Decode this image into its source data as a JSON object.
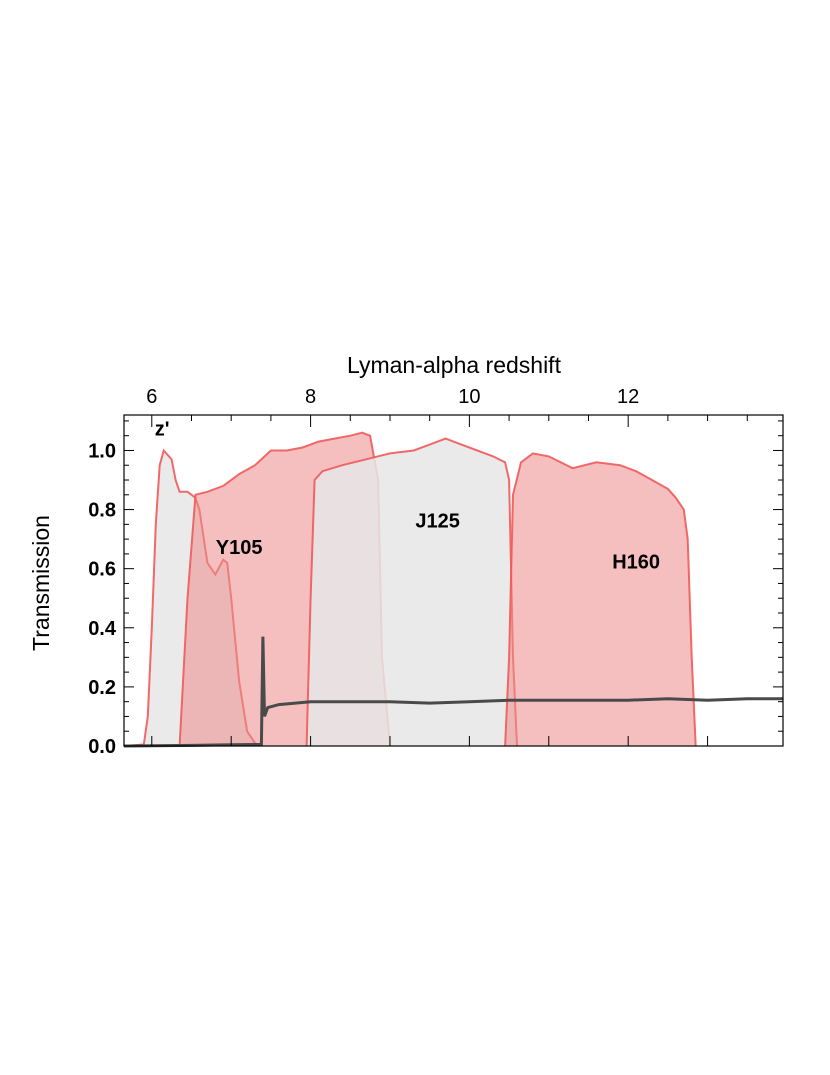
{
  "chart_data": {
    "type": "area",
    "title": "",
    "xlabel_top": "Lyman-alpha redshift",
    "ylabel": "Transmission",
    "xlim": [
      5.65,
      13.95
    ],
    "ylim": [
      0,
      1.12
    ],
    "grid": false,
    "top_ticks": [
      6,
      8,
      10,
      12
    ],
    "y_ticks": [
      0.0,
      0.2,
      0.4,
      0.6,
      0.8,
      1.0
    ],
    "y_tick_labels": [
      "0.0",
      "0.2",
      "0.4",
      "0.6",
      "0.8",
      "1.0"
    ],
    "colors": {
      "gray_fill": "#e6e6e6",
      "red_fill": "#ef8a8a",
      "red_line": "#f05a5a",
      "curve": "#4a4a4a"
    },
    "series": [
      {
        "name": "z'",
        "fill": "gray",
        "x": [
          5.65,
          5.9,
          5.95,
          6.0,
          6.05,
          6.1,
          6.15,
          6.25,
          6.3,
          6.35,
          6.45,
          6.55,
          6.6,
          6.7,
          6.8,
          6.9,
          6.95,
          7.0,
          7.1,
          7.2,
          7.3,
          7.35
        ],
        "y": [
          0.0,
          0.005,
          0.1,
          0.4,
          0.75,
          0.95,
          1.0,
          0.97,
          0.9,
          0.86,
          0.86,
          0.84,
          0.8,
          0.62,
          0.58,
          0.63,
          0.62,
          0.5,
          0.22,
          0.05,
          0.01,
          0.0
        ]
      },
      {
        "name": "Y105",
        "fill": "red",
        "x": [
          6.35,
          6.45,
          6.55,
          6.7,
          6.9,
          7.1,
          7.3,
          7.5,
          7.7,
          7.9,
          8.1,
          8.3,
          8.5,
          8.65,
          8.75,
          8.85,
          8.9,
          9.0
        ],
        "y": [
          0.0,
          0.5,
          0.85,
          0.86,
          0.88,
          0.92,
          0.95,
          1.0,
          1.0,
          1.01,
          1.03,
          1.04,
          1.05,
          1.06,
          1.05,
          0.9,
          0.3,
          0.0
        ]
      },
      {
        "name": "J125",
        "fill": "gray",
        "x": [
          7.95,
          8.0,
          8.05,
          8.15,
          8.4,
          8.7,
          9.0,
          9.3,
          9.5,
          9.7,
          9.9,
          10.1,
          10.3,
          10.45,
          10.5,
          10.55,
          10.6
        ],
        "y": [
          0.0,
          0.5,
          0.9,
          0.93,
          0.95,
          0.97,
          0.99,
          1.0,
          1.02,
          1.04,
          1.02,
          1.0,
          0.98,
          0.96,
          0.9,
          0.3,
          0.0
        ]
      },
      {
        "name": "H160",
        "fill": "red",
        "x": [
          10.45,
          10.5,
          10.55,
          10.65,
          10.8,
          11.0,
          11.3,
          11.6,
          11.9,
          12.1,
          12.3,
          12.5,
          12.6,
          12.7,
          12.75,
          12.8,
          12.85
        ],
        "y": [
          0.0,
          0.3,
          0.85,
          0.96,
          0.99,
          0.98,
          0.94,
          0.96,
          0.95,
          0.93,
          0.9,
          0.87,
          0.84,
          0.8,
          0.7,
          0.3,
          0.0
        ]
      },
      {
        "name": "",
        "fill": "none",
        "x": [
          5.65,
          6.5,
          7.0,
          7.3,
          7.38,
          7.4,
          7.42,
          7.46,
          7.6,
          8.0,
          8.5,
          9.0,
          9.5,
          10.0,
          10.5,
          11.0,
          11.5,
          12.0,
          12.5,
          13.0,
          13.5,
          13.95
        ],
        "y": [
          0.0,
          0.002,
          0.004,
          0.005,
          0.005,
          0.37,
          0.1,
          0.13,
          0.14,
          0.15,
          0.15,
          0.15,
          0.145,
          0.15,
          0.155,
          0.155,
          0.155,
          0.155,
          0.16,
          0.155,
          0.16,
          0.16
        ]
      }
    ],
    "annotations": [
      {
        "text": "z'",
        "x": 6.13,
        "y": 1.05
      },
      {
        "text": "Y105",
        "x": 7.1,
        "y": 0.65
      },
      {
        "text": "J125",
        "x": 9.6,
        "y": 0.74
      },
      {
        "text": "H160",
        "x": 12.1,
        "y": 0.6
      }
    ]
  }
}
